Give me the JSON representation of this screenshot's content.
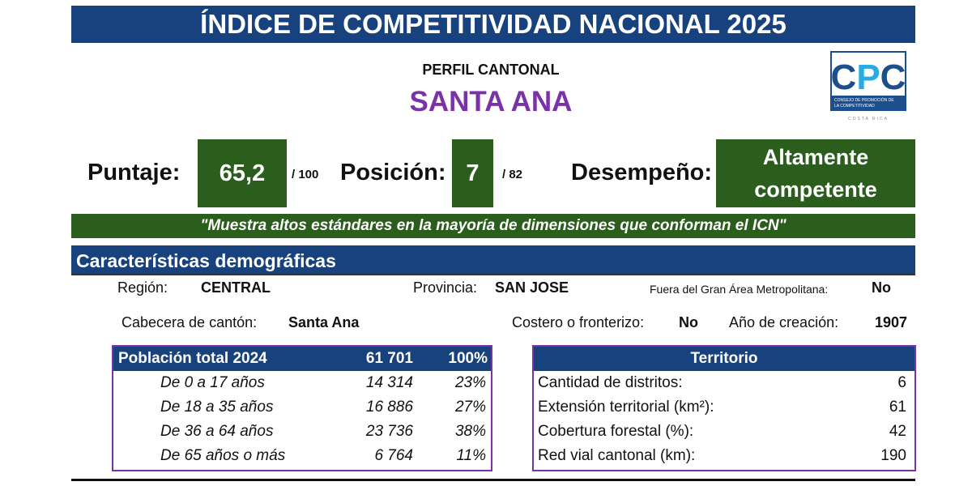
{
  "header": {
    "title": "ÍNDICE DE COMPETITIVIDAD NACIONAL 2025",
    "subtitle": "PERFIL CANTONAL",
    "canton": "SANTA ANA"
  },
  "logo": {
    "letters": "CPC",
    "text": "CONSEJO DE PROMOCIÓN DE LA COMPETITIVIDAD",
    "country": "COSTA RICA"
  },
  "score": {
    "label": "Puntaje:",
    "value": "65,2",
    "max": "/ 100"
  },
  "position": {
    "label": "Posición:",
    "value": "7",
    "max": "/ 82"
  },
  "performance": {
    "label": "Desempeño:",
    "value_line1": "Altamente",
    "value_line2": "competente"
  },
  "quote": "\"Muestra altos estándares en la mayoría de dimensiones que conforman el ICN\"",
  "demographics": {
    "title": "Características demográficas",
    "region_label": "Región:",
    "region": "CENTRAL",
    "provincia_label": "Provincia:",
    "provincia": "SAN JOSE",
    "gam_label": "Fuera del Gran Área Metropolitana:",
    "gam": "No",
    "cabecera_label": "Cabecera de cantón:",
    "cabecera": "Santa Ana",
    "costero_label": "Costero o fronterizo:",
    "costero": "No",
    "anio_label": "Año de creación:",
    "anio": "1907"
  },
  "population": {
    "header": "Población total 2024",
    "total": "61 701",
    "pct": "100%",
    "rows": [
      {
        "label": "De 0 a 17 años",
        "value": "14 314",
        "pct": "23%"
      },
      {
        "label": "De 18 a 35 años",
        "value": "16 886",
        "pct": "27%"
      },
      {
        "label": "De 36 a 64 años",
        "value": "23 736",
        "pct": "38%"
      },
      {
        "label": "De 65 años o más",
        "value": "6 764",
        "pct": "11%"
      }
    ]
  },
  "territory": {
    "header": "Territorio",
    "rows": [
      {
        "label": "Cantidad de distritos:",
        "value": "6"
      },
      {
        "label": "Extensión territorial (km²):",
        "value": "61"
      },
      {
        "label": "Cobertura forestal (%):",
        "value": "42"
      },
      {
        "label": "Red vial cantonal (km):",
        "value": "190"
      }
    ]
  },
  "colors": {
    "navy": "#17427e",
    "green": "#2b5d1d",
    "purple": "#7a33a6"
  }
}
